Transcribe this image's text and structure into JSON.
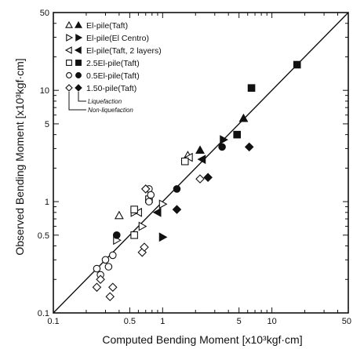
{
  "chart_data": {
    "type": "scatter",
    "xlabel": "Computed Bending Moment [x10³kgf·cm]",
    "ylabel": "Observed Bending Moment [x10³kgf·cm]",
    "xscale": "log",
    "yscale": "log",
    "xlim": [
      0.1,
      50
    ],
    "ylim": [
      0.1,
      50
    ],
    "x_ticks": [
      {
        "value": 0.1,
        "label": "0.1"
      },
      {
        "value": 0.5,
        "label": "0.5"
      },
      {
        "value": 1,
        "label": "1"
      },
      {
        "value": 5,
        "label": "5"
      },
      {
        "value": 10,
        "label": "10"
      },
      {
        "value": 50,
        "label": "50"
      }
    ],
    "y_ticks": [
      {
        "value": 0.1,
        "label": "0.1"
      },
      {
        "value": 0.5,
        "label": "0.5"
      },
      {
        "value": 1,
        "label": "1"
      },
      {
        "value": 5,
        "label": "5"
      },
      {
        "value": 10,
        "label": "10"
      },
      {
        "value": 50,
        "label": "50"
      }
    ],
    "reference_line": "1:1",
    "grid": false,
    "legend_position": "top-left",
    "legend_notes": [
      "Liquefaction",
      "Non-liquefaction"
    ],
    "series": [
      {
        "name": "El-pile(Taft)",
        "marker": "triangle-up",
        "open": [
          [
            0.4,
            0.75
          ],
          [
            1.7,
            2.6
          ]
        ],
        "filled": [
          [
            2.2,
            2.9
          ],
          [
            5.5,
            5.6
          ]
        ]
      },
      {
        "name": "El-pile(El Centro)",
        "marker": "triangle-right",
        "open": [
          [
            0.38,
            0.45
          ],
          [
            0.55,
            0.8
          ],
          [
            1.0,
            0.95
          ],
          [
            0.65,
            0.6
          ]
        ],
        "filled": [
          [
            3.6,
            3.6
          ],
          [
            1.0,
            0.48
          ]
        ]
      },
      {
        "name": "El-pile(Taft, 2 layers)",
        "marker": "triangle-left",
        "open": [
          [
            0.6,
            0.8
          ],
          [
            1.75,
            2.5
          ]
        ],
        "filled": [
          [
            2.3,
            2.4
          ],
          [
            0.9,
            0.8
          ]
        ]
      },
      {
        "name": "2.5El-pile(Taft)",
        "marker": "square",
        "open": [
          [
            0.55,
            0.5
          ],
          [
            0.55,
            0.85
          ],
          [
            0.75,
            1.05
          ],
          [
            1.6,
            2.3
          ]
        ],
        "filled": [
          [
            6.5,
            10.5
          ],
          [
            17,
            17
          ],
          [
            4.8,
            4.0
          ]
        ]
      },
      {
        "name": "0.5El-pile(Taft)",
        "marker": "circle",
        "open": [
          [
            0.25,
            0.25
          ],
          [
            0.27,
            0.22
          ],
          [
            0.3,
            0.3
          ],
          [
            0.35,
            0.33
          ],
          [
            0.32,
            0.26
          ],
          [
            0.75,
            1.3
          ],
          [
            0.78,
            1.15
          ],
          [
            0.75,
            1.0
          ]
        ],
        "filled": [
          [
            1.35,
            1.3
          ],
          [
            3.5,
            3.1
          ],
          [
            0.38,
            0.5
          ]
        ]
      },
      {
        "name": "1.50-pile(Taft)",
        "marker": "diamond",
        "open": [
          [
            0.25,
            0.17
          ],
          [
            0.27,
            0.2
          ],
          [
            0.33,
            0.14
          ],
          [
            0.35,
            0.17
          ],
          [
            0.65,
            0.35
          ],
          [
            0.68,
            0.39
          ],
          [
            0.7,
            1.3
          ],
          [
            2.2,
            1.6
          ]
        ],
        "filled": [
          [
            1.35,
            0.85
          ],
          [
            2.6,
            1.65
          ],
          [
            6.2,
            3.1
          ]
        ]
      }
    ]
  }
}
